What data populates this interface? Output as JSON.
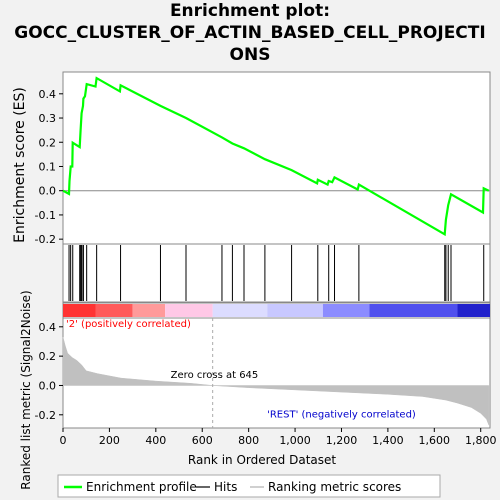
{
  "title_lines": [
    "Enrichment plot:",
    "GOCC_CLUSTER_OF_ACTIN_BASED_CELL_PROJECTI",
    "ONS"
  ],
  "chart_data": {
    "type": "line",
    "x_axis": {
      "label": "Rank in Ordered Dataset",
      "range": [
        0,
        1840
      ],
      "ticks": [
        0,
        200,
        400,
        600,
        800,
        1000,
        1200,
        1400,
        1600,
        1800
      ],
      "tick_labels": [
        "0",
        "200",
        "400",
        "600",
        "800",
        "1,000",
        "1,200",
        "1,400",
        "1,600",
        "1,800"
      ]
    },
    "es_panel": {
      "ylabel": "Enrichment score (ES)",
      "ylim": [
        -0.22,
        0.49
      ],
      "ticks": [
        -0.2,
        -0.1,
        0.0,
        0.1,
        0.2,
        0.3,
        0.4
      ],
      "tick_labels": [
        "-0.2",
        "-0.1",
        "0.0",
        "0.1",
        "0.2",
        "0.3",
        "0.4"
      ],
      "series": [
        {
          "name": "Enrichment profile",
          "color": "#00ff00",
          "points": [
            [
              0,
              0.0
            ],
            [
              26,
              -0.013
            ],
            [
              28,
              0.04
            ],
            [
              33,
              0.1
            ],
            [
              40,
              0.1
            ],
            [
              42,
              0.198
            ],
            [
              72,
              0.18
            ],
            [
              76,
              0.25
            ],
            [
              80,
              0.32
            ],
            [
              86,
              0.35
            ],
            [
              88,
              0.38
            ],
            [
              95,
              0.39
            ],
            [
              102,
              0.44
            ],
            [
              140,
              0.43
            ],
            [
              145,
              0.465
            ],
            [
              245,
              0.41
            ],
            [
              248,
              0.435
            ],
            [
              420,
              0.35
            ],
            [
              530,
              0.3
            ],
            [
              685,
              0.22
            ],
            [
              730,
              0.195
            ],
            [
              780,
              0.175
            ],
            [
              870,
              0.13
            ],
            [
              985,
              0.085
            ],
            [
              1095,
              0.03
            ],
            [
              1098,
              0.045
            ],
            [
              1140,
              0.025
            ],
            [
              1145,
              0.04
            ],
            [
              1160,
              0.035
            ],
            [
              1170,
              0.055
            ],
            [
              1270,
              0.005
            ],
            [
              1275,
              0.025
            ],
            [
              1645,
              -0.18
            ],
            [
              1650,
              -0.12
            ],
            [
              1660,
              -0.06
            ],
            [
              1672,
              -0.015
            ],
            [
              1810,
              -0.09
            ],
            [
              1813,
              0.01
            ],
            [
              1835,
              0.0
            ]
          ]
        }
      ],
      "hits": [
        26,
        33,
        42,
        72,
        76,
        80,
        86,
        88,
        102,
        145,
        248,
        420,
        530,
        685,
        730,
        780,
        870,
        985,
        1098,
        1145,
        1170,
        1275,
        1645,
        1650,
        1660,
        1672,
        1813
      ]
    },
    "metric_panel": {
      "ylabel": "Ranked list metric (Signal2Noise)",
      "ylim": [
        -0.29,
        0.46
      ],
      "ticks": [
        -0.2,
        0.0,
        0.2,
        0.4
      ],
      "tick_labels": [
        "-0.2",
        "0.0",
        "0.2",
        "0.4"
      ],
      "series": [
        {
          "name": "Ranking metric scores",
          "color": "#c0c0c0",
          "points": [
            [
              0,
              0.33
            ],
            [
              10,
              0.27
            ],
            [
              20,
              0.22
            ],
            [
              40,
              0.19
            ],
            [
              60,
              0.17
            ],
            [
              80,
              0.14
            ],
            [
              100,
              0.1
            ],
            [
              150,
              0.08
            ],
            [
              250,
              0.05
            ],
            [
              400,
              0.03
            ],
            [
              550,
              0.015
            ],
            [
              645,
              0.0
            ],
            [
              800,
              -0.015
            ],
            [
              1000,
              -0.03
            ],
            [
              1200,
              -0.045
            ],
            [
              1400,
              -0.06
            ],
            [
              1550,
              -0.075
            ],
            [
              1650,
              -0.1
            ],
            [
              1700,
              -0.12
            ],
            [
              1760,
              -0.15
            ],
            [
              1800,
              -0.19
            ],
            [
              1825,
              -0.23
            ],
            [
              1835,
              -0.27
            ]
          ]
        }
      ],
      "zero_cross": 645,
      "zero_cross_label": "Zero cross at 645",
      "positive_label": "'2' (positively correlated)",
      "negative_label": "'REST' (negatively correlated)"
    },
    "legend": {
      "placement": "bottom",
      "items": [
        {
          "label": "Enrichment profile",
          "color": "#00ff00"
        },
        {
          "label": "Hits",
          "color": "#000000"
        },
        {
          "label": "Ranking metric scores",
          "color": "#c0c0c0"
        }
      ]
    },
    "colors": {
      "positive_text": "#ff0000",
      "negative_text": "#0000cc",
      "profile": "#00ff00"
    }
  }
}
